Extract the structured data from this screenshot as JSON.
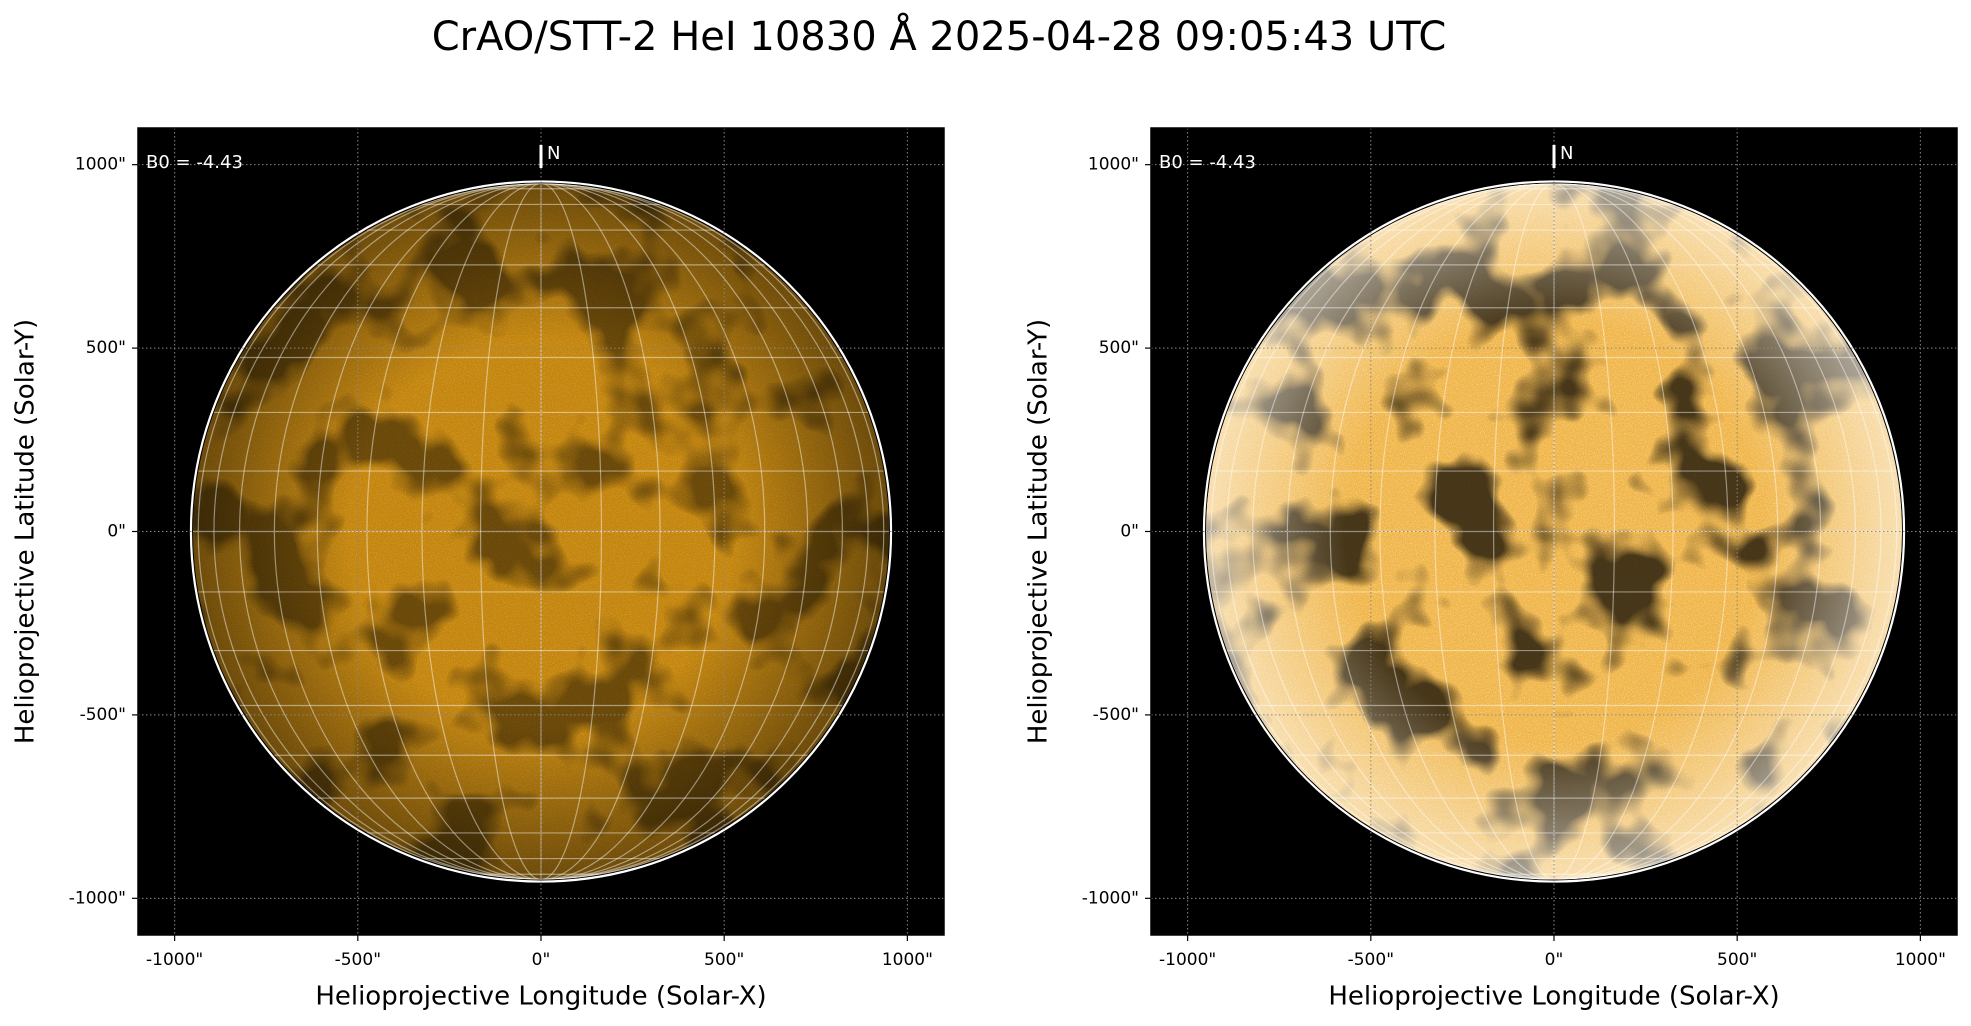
{
  "title": "CrAO/STT-2 HeI 10830 Å 2025-04-28 09:05:43 UTC",
  "chart_data": [
    {
      "type": "image",
      "xlabel": "Helioprojective Longitude (Solar-X)",
      "ylabel": "Helioprojective Latitude (Solar-Y)",
      "annotations": [
        "B0 = -4.43",
        "N"
      ],
      "xlim": [
        -1100,
        1100
      ],
      "ylim": [
        -1100,
        1100
      ],
      "xticks": [
        {
          "value": -1000,
          "label": "-1000\""
        },
        {
          "value": -500,
          "label": "-500\""
        },
        {
          "value": 0,
          "label": "0\""
        },
        {
          "value": 500,
          "label": "500\""
        },
        {
          "value": 1000,
          "label": "1000\""
        }
      ],
      "yticks": [
        {
          "value": -1000,
          "label": "-1000\""
        },
        {
          "value": -500,
          "label": "-500\""
        },
        {
          "value": 0,
          "label": "0\""
        },
        {
          "value": 500,
          "label": "500\""
        },
        {
          "value": 1000,
          "label": "1000\""
        }
      ],
      "grid": true,
      "color": "#c4850c"
    },
    {
      "type": "image",
      "xlabel": "Helioprojective Longitude (Solar-X)",
      "ylabel": "Helioprojective Latitude (Solar-Y)",
      "annotations": [
        "B0 = -4.43",
        "N"
      ],
      "xlim": [
        -1100,
        1100
      ],
      "ylim": [
        -1100,
        1100
      ],
      "xticks": [
        {
          "value": -1000,
          "label": "-1000\""
        },
        {
          "value": -500,
          "label": "-500\""
        },
        {
          "value": 0,
          "label": "0\""
        },
        {
          "value": 500,
          "label": "500\""
        },
        {
          "value": 1000,
          "label": "1000\""
        }
      ],
      "yticks": [
        {
          "value": -1000,
          "label": "-1000\""
        },
        {
          "value": -500,
          "label": "-500\""
        },
        {
          "value": 0,
          "label": "0\""
        },
        {
          "value": 500,
          "label": "500\""
        },
        {
          "value": 1000,
          "label": "1000\""
        }
      ],
      "grid": true,
      "color": "#f0b548"
    }
  ]
}
